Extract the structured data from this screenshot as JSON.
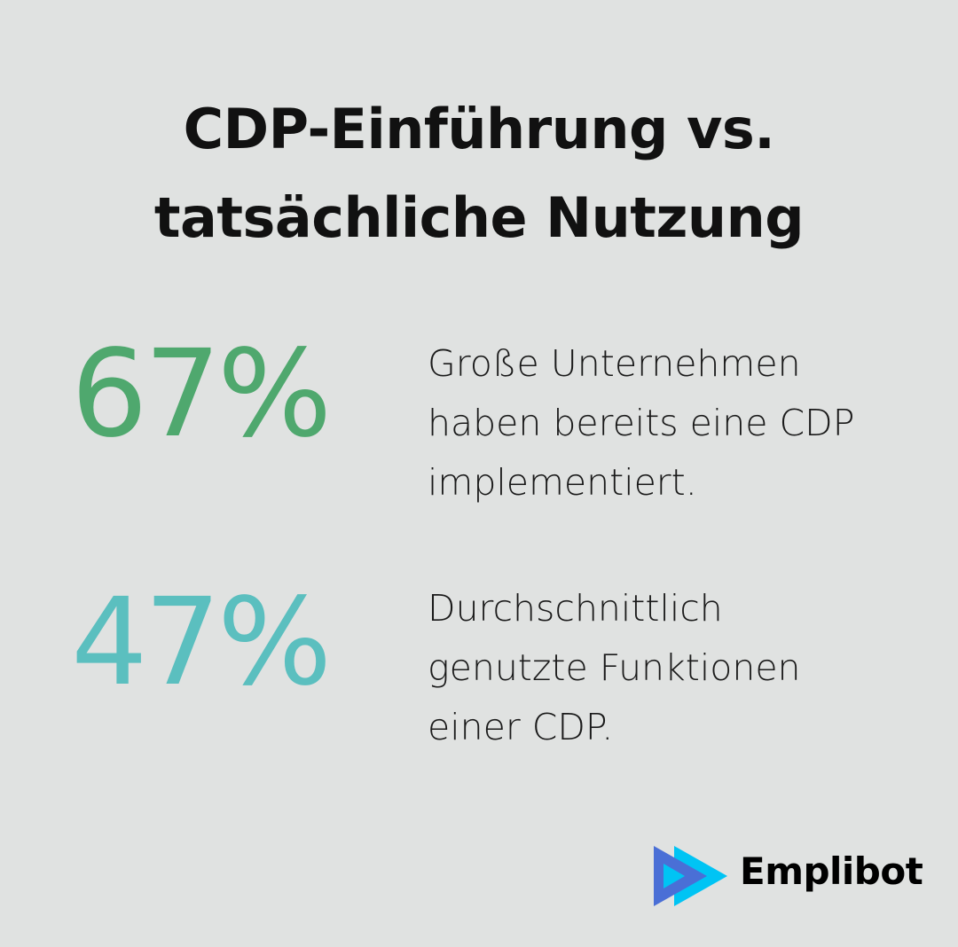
{
  "title": {
    "line1": "CDP-Einführung vs.",
    "line2": "tatsächliche Nutzung"
  },
  "stats": [
    {
      "value": "67%",
      "color": "#4fa86e",
      "desc_lines": [
        "Große Unternehmen",
        "haben bereits eine CDP",
        "implementiert."
      ]
    },
    {
      "value": "47%",
      "color": "#5bbfbf",
      "desc_lines": [
        "Durchschnittlich",
        "genutzte Funktionen",
        "einer CDP."
      ]
    }
  ],
  "logo": {
    "name": "Emplibot",
    "colors": {
      "primary": "#4a6fd6",
      "secondary": "#00c4f4"
    }
  }
}
